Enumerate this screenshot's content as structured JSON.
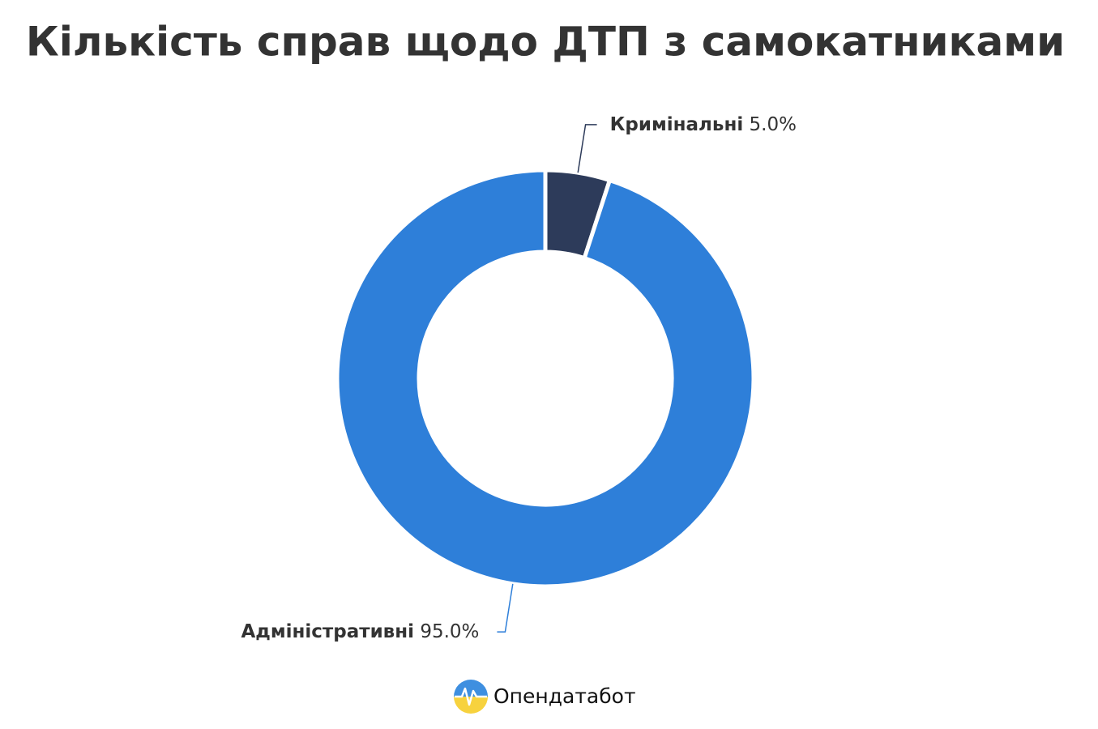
{
  "chart_data": {
    "type": "pie",
    "title": "Кількість справ щодо ДТП з самокатниками",
    "categories": [
      "Кримінальні",
      "Адміністративні"
    ],
    "values": [
      5.0,
      95.0
    ],
    "value_labels": [
      "5.0%",
      "95.0%"
    ],
    "colors": [
      "#2d3b5a",
      "#2e7fd9"
    ],
    "donut": true
  },
  "footer": {
    "brand": "Опендатабот"
  }
}
